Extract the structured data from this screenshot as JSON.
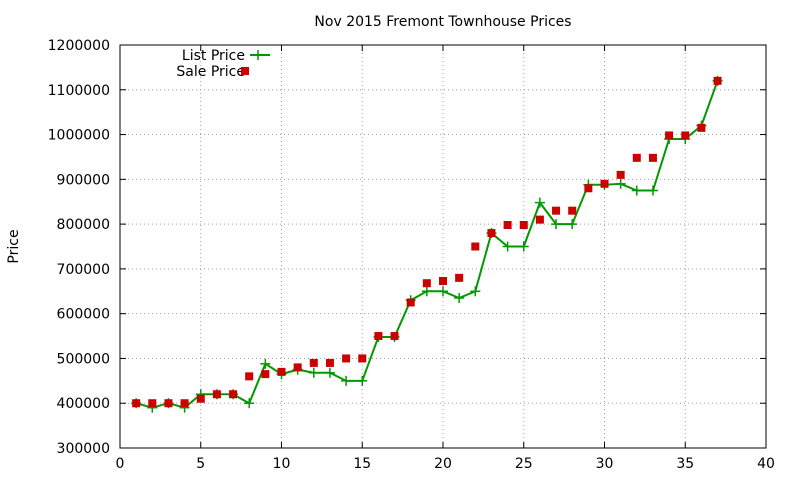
{
  "chart_data": {
    "type": "line",
    "title": "Nov 2015 Fremont Townhouse Prices",
    "xlabel": "",
    "ylabel": "Price",
    "xlim": [
      0,
      40
    ],
    "ylim": [
      300000,
      1200000
    ],
    "xticks": [
      0,
      5,
      10,
      15,
      20,
      25,
      30,
      35,
      40
    ],
    "yticks": [
      300000,
      400000,
      500000,
      600000,
      700000,
      800000,
      900000,
      1000000,
      1100000,
      1200000
    ],
    "grid": true,
    "legend_position": "top-left",
    "series": [
      {
        "name": "List Price",
        "style": "linespoints",
        "color": "#009900",
        "marker": "plus",
        "x": [
          1,
          2,
          3,
          4,
          5,
          6,
          7,
          8,
          9,
          10,
          11,
          12,
          13,
          14,
          15,
          16,
          17,
          18,
          19,
          20,
          21,
          22,
          23,
          24,
          25,
          26,
          27,
          28,
          29,
          30,
          31,
          32,
          33,
          34,
          35,
          36,
          37
        ],
        "y": [
          400000,
          390000,
          400000,
          390000,
          420000,
          420000,
          420000,
          400000,
          488000,
          465000,
          475000,
          468000,
          468000,
          450000,
          450000,
          548000,
          548000,
          630000,
          650000,
          650000,
          635000,
          650000,
          780000,
          750000,
          750000,
          848000,
          800000,
          800000,
          888000,
          888000,
          890000,
          875000,
          875000,
          990000,
          990000,
          1020000,
          1120000
        ]
      },
      {
        "name": "Sale Price",
        "style": "points",
        "color": "#cc0000",
        "marker": "square",
        "x": [
          1,
          2,
          3,
          4,
          5,
          6,
          7,
          8,
          9,
          10,
          11,
          12,
          13,
          14,
          15,
          16,
          17,
          18,
          19,
          20,
          21,
          22,
          23,
          24,
          25,
          26,
          27,
          28,
          29,
          30,
          31,
          32,
          33,
          34,
          35,
          36,
          37
        ],
        "y": [
          400000,
          400000,
          400000,
          400000,
          410000,
          420000,
          420000,
          460000,
          465000,
          470000,
          480000,
          490000,
          490000,
          500000,
          500000,
          550000,
          550000,
          625000,
          668000,
          673000,
          680000,
          750000,
          780000,
          798000,
          798000,
          810000,
          830000,
          830000,
          880000,
          890000,
          910000,
          948000,
          948000,
          998000,
          998000,
          1015000,
          1120000
        ]
      }
    ]
  }
}
